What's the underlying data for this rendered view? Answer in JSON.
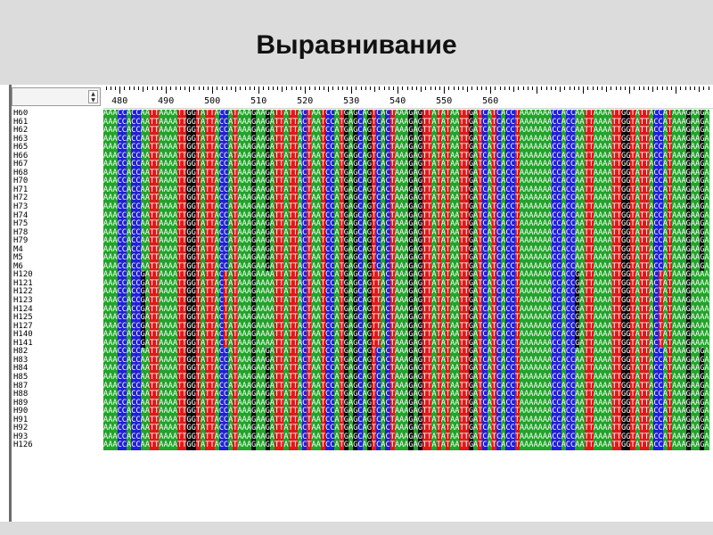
{
  "slide": {
    "title": "Выравнивание"
  },
  "ruler": {
    "start_position": 477,
    "labels": [
      "480",
      "490",
      "500",
      "510",
      "520",
      "530",
      "540",
      "550",
      "560"
    ]
  },
  "alignment": {
    "colors": {
      "A": "#22a32a",
      "C": "#2020d8",
      "G": "#0a0a0a",
      "T": "#e01818"
    },
    "consensus": "AAACCACCAATTAAAATTGGTATTACCATAAAGAAGATTATTACTAATCCATGAGCAGTCACTAAAGAGTTATATAATTGATCATCACCTAAAA",
    "variant_consensus": "AAACCACCGATTAAAATTGGTATTACTATAAAGAAAATTATTACTAATCCATGAGCAGTTACTAAAGAGTTATATAATTGATCATCACCTAAAA",
    "rows": [
      {
        "name": "H60",
        "variant": false
      },
      {
        "name": "H61",
        "variant": false
      },
      {
        "name": "H62",
        "variant": false
      },
      {
        "name": "H63",
        "variant": false
      },
      {
        "name": "H65",
        "variant": false
      },
      {
        "name": "H66",
        "variant": false
      },
      {
        "name": "H67",
        "variant": false
      },
      {
        "name": "H68",
        "variant": false
      },
      {
        "name": "H70",
        "variant": false
      },
      {
        "name": "H71",
        "variant": false
      },
      {
        "name": "H72",
        "variant": false
      },
      {
        "name": "H73",
        "variant": false
      },
      {
        "name": "H74",
        "variant": false
      },
      {
        "name": "H75",
        "variant": false
      },
      {
        "name": "H78",
        "variant": false
      },
      {
        "name": "H79",
        "variant": false
      },
      {
        "name": "M4",
        "variant": false
      },
      {
        "name": "M5",
        "variant": false
      },
      {
        "name": "M6",
        "variant": false
      },
      {
        "name": "H120",
        "variant": true
      },
      {
        "name": "H121",
        "variant": true
      },
      {
        "name": "H122",
        "variant": true
      },
      {
        "name": "H123",
        "variant": true
      },
      {
        "name": "H124",
        "variant": true
      },
      {
        "name": "H125",
        "variant": true
      },
      {
        "name": "H127",
        "variant": true
      },
      {
        "name": "H140",
        "variant": true
      },
      {
        "name": "H141",
        "variant": true
      },
      {
        "name": "H82",
        "variant": false
      },
      {
        "name": "H83",
        "variant": false
      },
      {
        "name": "H84",
        "variant": false
      },
      {
        "name": "H85",
        "variant": false
      },
      {
        "name": "H87",
        "variant": false
      },
      {
        "name": "H88",
        "variant": false
      },
      {
        "name": "H89",
        "variant": false
      },
      {
        "name": "H90",
        "variant": false
      },
      {
        "name": "H91",
        "variant": false
      },
      {
        "name": "H92",
        "variant": false
      },
      {
        "name": "H93",
        "variant": false
      },
      {
        "name": "H126",
        "variant": false
      }
    ]
  }
}
